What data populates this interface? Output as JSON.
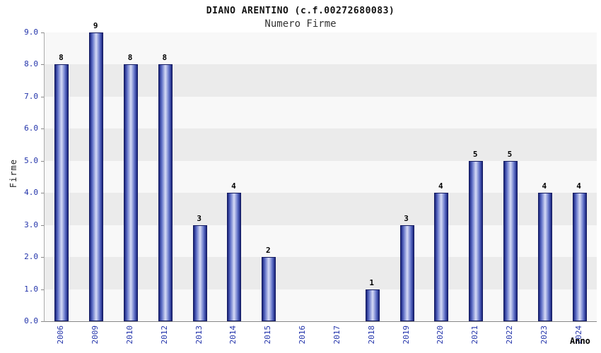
{
  "chart_data": {
    "type": "bar",
    "title": "DIANO ARENTINO (c.f.00272680083)",
    "subtitle": "Numero Firme",
    "xlabel": "Anno",
    "ylabel": "Firme",
    "categories": [
      "2006",
      "2009",
      "2010",
      "2012",
      "2013",
      "2014",
      "2015",
      "2016",
      "2017",
      "2018",
      "2019",
      "2020",
      "2021",
      "2022",
      "2023",
      "2024"
    ],
    "values": [
      8,
      9,
      8,
      8,
      3,
      4,
      2,
      0,
      0,
      1,
      3,
      4,
      5,
      5,
      4,
      4
    ],
    "ylim": [
      0,
      9
    ],
    "ytick_labels": [
      "0.0",
      "1.0",
      "2.0",
      "3.0",
      "4.0",
      "5.0",
      "6.0",
      "7.0",
      "8.0",
      "9.0"
    ],
    "grid": "alternating-bands",
    "legend": "none",
    "colors": {
      "tick_label": "#2233aa",
      "bar_edge": "#18227a",
      "bar_mid": "#5b6cc5",
      "bar_center": "#d6dbf6",
      "bar_border": "#131b61",
      "band_light": "#f8f8f8",
      "band_gray": "#ebebeb",
      "value_label": "#000000"
    }
  }
}
